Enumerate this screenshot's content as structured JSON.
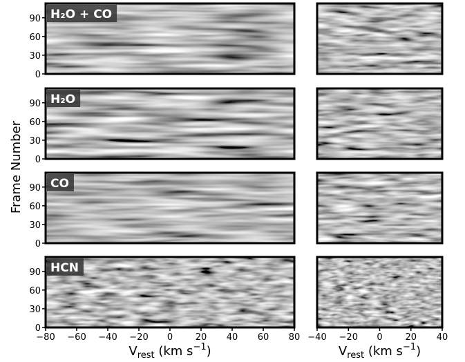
{
  "chart_data": [
    {
      "type": "heatmap",
      "label": "H₂O + CO",
      "xlim": [
        -80,
        80
      ],
      "ylim": [
        0,
        113
      ],
      "yticks": [
        0,
        30,
        60,
        90
      ]
    },
    {
      "type": "heatmap",
      "xlim": [
        -40,
        40
      ],
      "ylim": [
        0,
        113
      ]
    },
    {
      "type": "heatmap",
      "label": "H₂O",
      "xlim": [
        -80,
        80
      ],
      "ylim": [
        0,
        113
      ],
      "yticks": [
        0,
        30,
        60,
        90
      ]
    },
    {
      "type": "heatmap",
      "xlim": [
        -40,
        40
      ],
      "ylim": [
        0,
        113
      ]
    },
    {
      "type": "heatmap",
      "label": "CO",
      "xlim": [
        -80,
        80
      ],
      "ylim": [
        0,
        113
      ],
      "yticks": [
        0,
        30,
        60,
        90
      ]
    },
    {
      "type": "heatmap",
      "xlim": [
        -40,
        40
      ],
      "ylim": [
        0,
        113
      ]
    },
    {
      "type": "heatmap",
      "label": "HCN",
      "xlim": [
        -80,
        80
      ],
      "ylim": [
        0,
        113
      ],
      "yticks": [
        0,
        30,
        60,
        90
      ],
      "xticks": [
        {
          "value": -80,
          "label": "−80"
        },
        {
          "value": -60,
          "label": "−60"
        },
        {
          "value": -40,
          "label": "−40"
        },
        {
          "value": -20,
          "label": "−20"
        },
        0,
        20,
        40,
        60,
        80
      ]
    },
    {
      "type": "heatmap",
      "xlim": [
        -40,
        40
      ],
      "ylim": [
        0,
        113
      ],
      "xticks": [
        {
          "value": -40,
          "label": "−40"
        },
        {
          "value": -20,
          "label": "−20"
        },
        0,
        20,
        40
      ]
    }
  ],
  "y_label": "Frame Number",
  "x_label": {
    "main": "V",
    "sub": "rest",
    "unit": " (km s",
    "sup": "−1",
    "end": ")"
  }
}
